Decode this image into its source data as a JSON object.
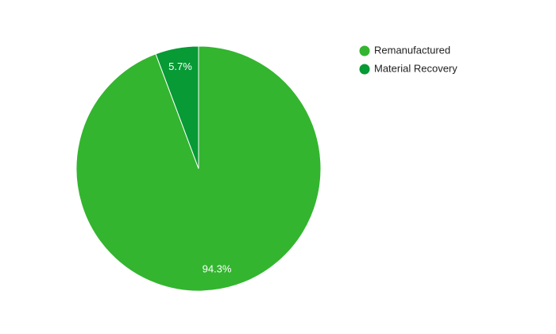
{
  "chart_data": {
    "type": "pie",
    "categories": [
      "Remanufactured",
      "Material Recovery"
    ],
    "values": [
      94.3,
      5.7
    ],
    "value_labels": [
      "94.3%",
      "5.7%"
    ],
    "colors": [
      "#33b52f",
      "#079a35"
    ],
    "legend": "right"
  }
}
